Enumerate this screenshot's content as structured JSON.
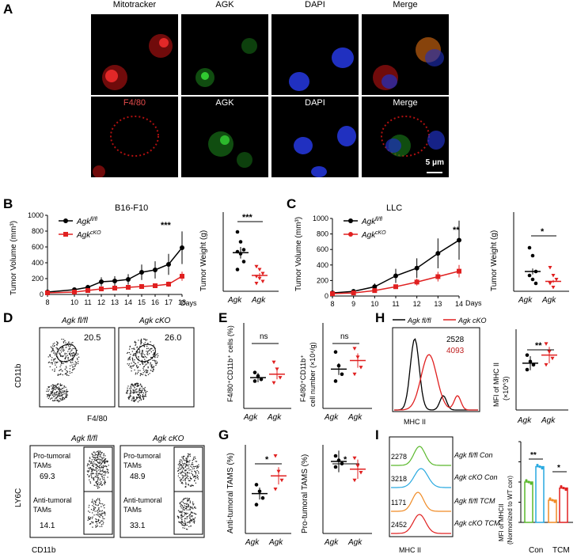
{
  "panels": {
    "A": "A",
    "B": "B",
    "C": "C",
    "D": "D",
    "E": "E",
    "F": "F",
    "G": "G",
    "H": "H",
    "I": "I"
  },
  "panelA": {
    "row1": [
      "Mitotracker",
      "AGK",
      "DAPI",
      "Merge"
    ],
    "row2": [
      "F4/80",
      "AGK",
      "DAPI",
      "Merge"
    ],
    "scale_bar": "5 μm"
  },
  "panelB": {
    "title": "B16-F10",
    "ylabel": "Tumor Volume (mm³)",
    "xunit": "Days",
    "legend": [
      "Agk",
      "fl/fl",
      "Agk",
      "cKO"
    ],
    "sig": "***",
    "weight_ylabel": "Tumor Weight (g)",
    "weight_sig": "***",
    "groups": [
      "Agk",
      "fl/fl",
      "Agk",
      "cKO"
    ]
  },
  "panelC": {
    "title": "LLC",
    "ylabel": "Tumor Volume (mm³)",
    "xunit": "Days",
    "sig": "**",
    "weight_ylabel": "Tumor Weight (g)",
    "weight_sig": "*"
  },
  "panelD": {
    "ylabel": "CD11b",
    "xlabel": "F4/80",
    "left_title": "Agk fl/fl",
    "right_title": "Agk cKO",
    "left_pct": "20.5",
    "right_pct": "26.0"
  },
  "panelE": {
    "left_ylabel": "F4/80⁺CD11b⁺ cells (%)",
    "right_ylabel1": "F4/80⁺CD11b⁺",
    "right_ylabel2": "cell number (×10⁴/g)",
    "sig": "ns"
  },
  "panelF": {
    "ylabel": "LY6C",
    "xlabel": "CD11b",
    "left": {
      "pro": "Pro-tumoral\nTAMs",
      "pro_val": "69.3",
      "anti": "Anti-tumoral\nTAMs",
      "anti_val": "14.1"
    },
    "right": {
      "pro_val": "48.9",
      "anti_val": "33.1"
    }
  },
  "panelG": {
    "left_ylabel": "Anti-tumoral TAMS (%)",
    "right_ylabel": "Pro-tumoral TAMS (%)",
    "sig": "*"
  },
  "panelH": {
    "legend_fl": "Agk fl/fl",
    "legend_cko": "Agk cKO",
    "val_fl": "2528",
    "val_cko": "4093",
    "xlabel": "MHC II",
    "bar_ylabel1": "MFI of MHC II",
    "bar_ylabel2": "(×10^3)",
    "sig": "**"
  },
  "panelI": {
    "rows": [
      {
        "val": "2278",
        "label": "Agk fl/fl Con"
      },
      {
        "val": "3218",
        "label": "Agk cKO Con"
      },
      {
        "val": "1171",
        "label": "Agk fl/fl TCM"
      },
      {
        "val": "2452",
        "label": "Agk cKO TCM"
      }
    ],
    "xlabel": "MHC II",
    "bar_ylabel1": "MFI of MHCII",
    "bar_ylabel2": "(Normonized to WT con)",
    "groups": [
      "Con",
      "TCM"
    ],
    "sig1": "**",
    "sig2": "*"
  },
  "chart_data": [
    {
      "type": "line",
      "panel": "B-left",
      "title": "B16-F10",
      "x": [
        8,
        10,
        11,
        12,
        13,
        14,
        15,
        16,
        17,
        18
      ],
      "xlabel": "Days",
      "ylabel": "Tumor Volume (mm3)",
      "ylim": [
        0,
        1000
      ],
      "series": [
        {
          "name": "Agk fl/fl",
          "color": "#000000",
          "values": [
            30,
            60,
            90,
            160,
            170,
            190,
            280,
            310,
            380,
            590
          ]
        },
        {
          "name": "Agk cKO",
          "color": "#e02020",
          "values": [
            20,
            30,
            50,
            70,
            80,
            90,
            100,
            110,
            130,
            230
          ]
        }
      ]
    },
    {
      "type": "scatter",
      "panel": "B-right",
      "ylabel": "Tumor Weight (g)",
      "ylim": [
        0,
        0.8
      ],
      "categories": [
        "Agk fl/fl",
        "Agk cKO"
      ],
      "means": [
        0.39,
        0.16
      ]
    },
    {
      "type": "line",
      "panel": "C-left",
      "title": "LLC",
      "x": [
        8,
        9,
        10,
        11,
        12,
        13,
        14
      ],
      "xlabel": "Days",
      "ylabel": "Tumor Volume (mm3)",
      "ylim": [
        0,
        1000
      ],
      "series": [
        {
          "name": "Agk fl/fl",
          "color": "#000000",
          "values": [
            40,
            60,
            120,
            260,
            360,
            550,
            720
          ]
        },
        {
          "name": "Agk cKO",
          "color": "#e02020",
          "values": [
            30,
            40,
            70,
            120,
            180,
            250,
            320
          ]
        }
      ]
    },
    {
      "type": "scatter",
      "panel": "C-right",
      "ylabel": "Tumor Weight (g)",
      "ylim": [
        0,
        2.0
      ],
      "categories": [
        "Agk fl/fl",
        "Agk cKO"
      ],
      "means": [
        0.5,
        0.25
      ]
    },
    {
      "type": "scatter",
      "panel": "E-left",
      "ylabel": "F4/80+CD11b+ cells (%)",
      "ylim": [
        0,
        50
      ],
      "categories": [
        "Agk fl/fl",
        "Agk cKO"
      ],
      "means": [
        18,
        20
      ]
    },
    {
      "type": "scatter",
      "panel": "E-right",
      "ylabel": "F4/80+CD11b+ cell number (x10^4/g)",
      "ylim": [
        0,
        5
      ],
      "categories": [
        "Agk fl/fl",
        "Agk cKO"
      ],
      "means": [
        2.3,
        2.8
      ]
    },
    {
      "type": "scatter",
      "panel": "G-left",
      "ylabel": "Anti-tumoral TAMS (%)",
      "ylim": [
        0,
        40
      ],
      "categories": [
        "Agk fl/fl",
        "Agk cKO"
      ],
      "means": [
        18,
        26
      ]
    },
    {
      "type": "scatter",
      "panel": "G-right",
      "ylabel": "Pro-tumoral TAMS (%)",
      "ylim": [
        0,
        80
      ],
      "categories": [
        "Agk fl/fl",
        "Agk cKO"
      ],
      "means": [
        65,
        58
      ]
    },
    {
      "type": "scatter",
      "panel": "H-right",
      "ylabel": "MFI of MHC II (x10^3)",
      "ylim": [
        0,
        5
      ],
      "categories": [
        "Agk fl/fl",
        "Agk cKO"
      ],
      "means": [
        2.9,
        3.4
      ]
    },
    {
      "type": "bar",
      "panel": "I-right",
      "ylabel": "MFI of MHCII (Normonized to WT con)",
      "ylim": [
        0,
        2.0
      ],
      "categories": [
        "Agk fl/fl Con",
        "Agk cKO Con",
        "Agk fl/fl TCM",
        "Agk cKO TCM"
      ],
      "values": [
        1.0,
        1.38,
        0.55,
        0.85
      ]
    }
  ]
}
